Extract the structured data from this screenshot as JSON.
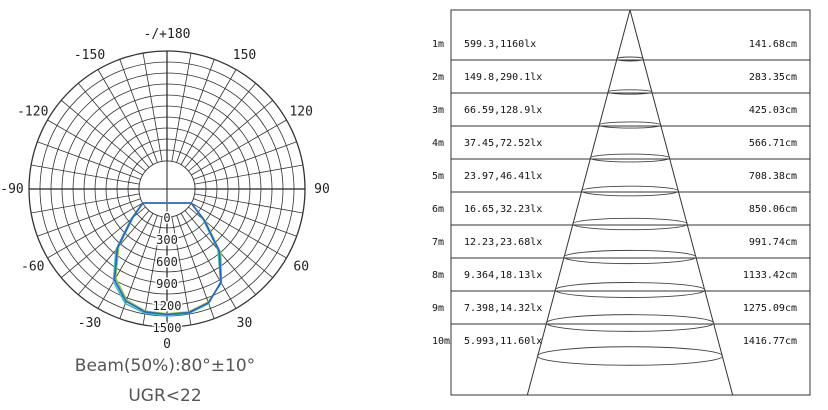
{
  "chart_data": [
    {
      "type": "polar",
      "angle_labels": [
        {
          "angle": 180,
          "text": "-/+180"
        },
        {
          "angle": -150,
          "text": "-150"
        },
        {
          "angle": 150,
          "text": "150"
        },
        {
          "angle": -120,
          "text": "-120"
        },
        {
          "angle": 120,
          "text": "120"
        },
        {
          "angle": -90,
          "text": "-90"
        },
        {
          "angle": 90,
          "text": "90"
        },
        {
          "angle": -60,
          "text": "-60"
        },
        {
          "angle": 60,
          "text": "60"
        },
        {
          "angle": -30,
          "text": "-30"
        },
        {
          "angle": 30,
          "text": "30"
        },
        {
          "angle": 0,
          "text": "0"
        }
      ],
      "radial_ticks": [
        0,
        300,
        600,
        900,
        1200,
        1500
      ],
      "rmax": 1500,
      "series": [
        {
          "color": "#2ec4c4",
          "angles": [
            -60,
            -50,
            -40,
            -30,
            -20,
            -10,
            0,
            10,
            20,
            30,
            40,
            50,
            60
          ],
          "values": [
            0,
            260,
            700,
            1080,
            1280,
            1340,
            1350,
            1340,
            1280,
            1080,
            700,
            260,
            0
          ]
        },
        {
          "color": "#9cc930",
          "angles": [
            -60,
            -50,
            -40,
            -30,
            -20,
            -10,
            0,
            10,
            20,
            30,
            40,
            50,
            60
          ],
          "values": [
            0,
            220,
            640,
            1020,
            1230,
            1310,
            1320,
            1320,
            1260,
            1100,
            760,
            300,
            0
          ]
        },
        {
          "color": "#2a5fd6",
          "angles": [
            -60,
            -50,
            -40,
            -30,
            -20,
            -10,
            0,
            10,
            20,
            30,
            40,
            50,
            60
          ],
          "values": [
            0,
            240,
            670,
            1050,
            1250,
            1320,
            1330,
            1330,
            1270,
            1090,
            730,
            280,
            0
          ]
        }
      ],
      "beam_label": "Beam(50%):80°±10°",
      "ugr_label": "UGR<22"
    },
    {
      "type": "table",
      "rows": [
        {
          "distance": "1m",
          "lux": "599.3,1160lx",
          "diameter": "141.68cm"
        },
        {
          "distance": "2m",
          "lux": "149.8,290.1lx",
          "diameter": "283.35cm"
        },
        {
          "distance": "3m",
          "lux": "66.59,128.9lx",
          "diameter": "425.03cm"
        },
        {
          "distance": "4m",
          "lux": "37.45,72.52lx",
          "diameter": "566.71cm"
        },
        {
          "distance": "5m",
          "lux": "23.97,46.41lx",
          "diameter": "708.38cm"
        },
        {
          "distance": "6m",
          "lux": "16.65,32.23lx",
          "diameter": "850.06cm"
        },
        {
          "distance": "7m",
          "lux": "12.23,23.68lx",
          "diameter": "991.74cm"
        },
        {
          "distance": "8m",
          "lux": "9.364,18.13lx",
          "diameter": "1133.42cm"
        },
        {
          "distance": "9m",
          "lux": "7.398,14.32lx",
          "diameter": "1275.09cm"
        },
        {
          "distance": "10m",
          "lux": "5.993,11.60lx",
          "diameter": "1416.77cm"
        }
      ]
    }
  ]
}
